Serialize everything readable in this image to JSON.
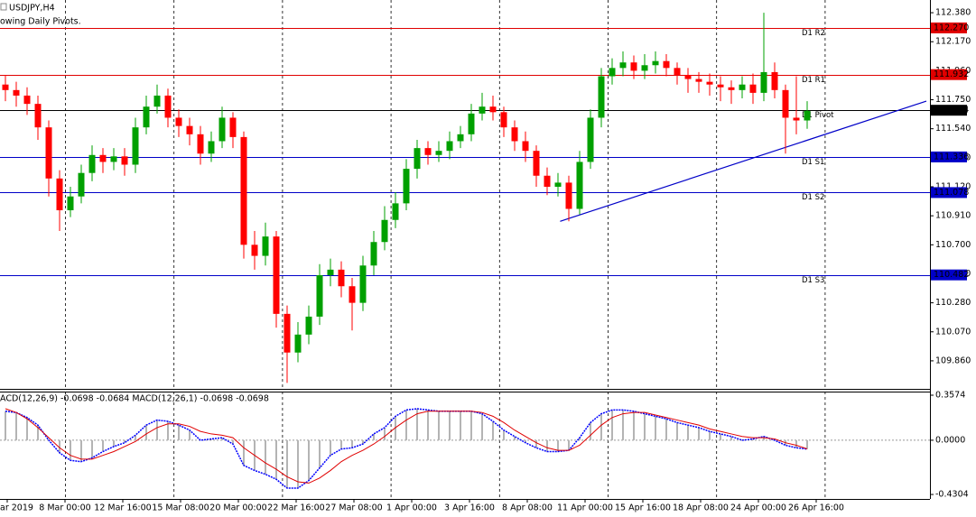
{
  "chart_data": {
    "type": "candlestick",
    "title": "USDJPY,H4",
    "subtitle": "owing Daily Pivots.",
    "up_color": "#00a000",
    "down_color": "#ff0000",
    "ylim": [
      109.657,
      112.472
    ],
    "yticks": [
      {
        "value": 112.38,
        "label": "112.380"
      },
      {
        "value": 112.17,
        "label": "112.170"
      },
      {
        "value": 111.96,
        "label": "111.960"
      },
      {
        "value": 111.75,
        "label": "111.750"
      },
      {
        "value": 111.54,
        "label": "111.540"
      },
      {
        "value": 111.33,
        "label": "111.330"
      },
      {
        "value": 111.12,
        "label": "111.120"
      },
      {
        "value": 110.91,
        "label": "110.910"
      },
      {
        "value": 110.7,
        "label": "110.700"
      },
      {
        "value": 110.49,
        "label": "110.490"
      },
      {
        "value": 110.28,
        "label": "110.280"
      },
      {
        "value": 110.07,
        "label": "110.070"
      },
      {
        "value": 109.86,
        "label": "109.860"
      }
    ],
    "categories": [
      "ar 2019",
      "8 Mar 00:00",
      "12 Mar 16:00",
      "15 Mar 08:00",
      "20 Mar 00:00",
      "22 Mar 16:00",
      "27 Mar 08:00",
      "1 Apr 00:00",
      "3 Apr 16:00",
      "8 Apr 08:00",
      "11 Apr 00:00",
      "15 Apr 16:00",
      "18 Apr 08:00",
      "24 Apr 00:00",
      "26 Apr 16:00"
    ],
    "open": [
      111.86,
      111.82,
      111.78,
      111.72,
      111.55,
      111.18,
      110.95,
      111.05,
      111.22,
      111.35,
      111.3,
      111.34,
      111.28,
      111.55,
      111.7,
      111.78,
      111.62,
      111.56,
      111.5,
      111.36,
      111.45,
      111.62,
      111.48,
      110.7,
      110.62,
      110.76,
      110.2,
      109.92,
      110.05,
      110.18,
      110.48,
      110.52,
      110.4,
      110.28,
      110.55,
      110.72,
      110.88,
      111.0,
      111.25,
      111.4,
      111.35,
      111.38,
      111.45,
      111.5,
      111.65,
      111.7,
      111.66,
      111.55,
      111.45,
      111.38,
      111.2,
      111.12,
      111.15,
      110.96,
      111.3,
      111.62,
      111.92,
      111.98,
      112.02,
      111.96,
      112.0,
      112.03,
      111.98,
      111.93,
      111.9,
      111.88,
      111.86,
      111.84,
      111.82,
      111.86,
      111.8,
      111.95,
      111.82,
      111.62,
      111.6
    ],
    "high": [
      111.93,
      111.88,
      111.84,
      111.78,
      111.6,
      111.24,
      111.12,
      111.28,
      111.42,
      111.4,
      111.4,
      111.4,
      111.62,
      111.78,
      111.86,
      111.83,
      111.68,
      111.62,
      111.56,
      111.52,
      111.7,
      111.66,
      111.52,
      110.8,
      110.86,
      110.8,
      110.26,
      110.14,
      110.26,
      110.56,
      110.6,
      110.58,
      110.46,
      110.62,
      110.8,
      110.98,
      111.08,
      111.32,
      111.46,
      111.45,
      111.45,
      111.52,
      111.56,
      111.72,
      111.8,
      111.78,
      111.7,
      111.6,
      111.52,
      111.42,
      111.26,
      111.22,
      111.2,
      111.38,
      111.68,
      111.98,
      112.05,
      112.1,
      112.07,
      112.08,
      112.1,
      112.08,
      112.02,
      111.98,
      111.95,
      111.94,
      111.92,
      111.89,
      111.92,
      111.94,
      112.38,
      112.02,
      111.86,
      111.92,
      111.74
    ],
    "low": [
      111.74,
      111.7,
      111.64,
      111.46,
      111.05,
      110.8,
      110.9,
      111.0,
      111.16,
      111.22,
      111.24,
      111.2,
      111.22,
      111.5,
      111.65,
      111.55,
      111.48,
      111.42,
      111.28,
      111.3,
      111.4,
      111.4,
      110.6,
      110.52,
      110.55,
      110.1,
      109.7,
      109.85,
      109.98,
      110.12,
      110.4,
      110.32,
      110.08,
      110.22,
      110.48,
      110.66,
      110.82,
      110.95,
      111.18,
      111.28,
      111.3,
      111.32,
      111.4,
      111.45,
      111.6,
      111.6,
      111.48,
      111.38,
      111.3,
      111.12,
      111.06,
      111.05,
      110.87,
      110.92,
      111.25,
      111.55,
      111.86,
      111.92,
      111.9,
      111.9,
      111.94,
      111.92,
      111.86,
      111.8,
      111.8,
      111.78,
      111.74,
      111.72,
      111.76,
      111.72,
      111.74,
      111.76,
      111.36,
      111.5,
      111.54
    ],
    "close": [
      111.82,
      111.78,
      111.72,
      111.55,
      111.18,
      110.95,
      111.05,
      111.22,
      111.35,
      111.3,
      111.34,
      111.28,
      111.55,
      111.7,
      111.78,
      111.62,
      111.56,
      111.5,
      111.36,
      111.45,
      111.62,
      111.48,
      110.7,
      110.62,
      110.76,
      110.2,
      109.92,
      110.05,
      110.18,
      110.48,
      110.52,
      110.4,
      110.28,
      110.55,
      110.72,
      110.88,
      111.0,
      111.25,
      111.4,
      111.35,
      111.38,
      111.45,
      111.5,
      111.65,
      111.7,
      111.66,
      111.55,
      111.45,
      111.38,
      111.2,
      111.12,
      111.15,
      110.96,
      111.3,
      111.62,
      111.92,
      111.98,
      112.02,
      111.96,
      112.0,
      112.03,
      111.98,
      111.93,
      111.9,
      111.88,
      111.86,
      111.84,
      111.82,
      111.86,
      111.8,
      111.95,
      111.82,
      111.62,
      111.6,
      111.67
    ],
    "levels": [
      {
        "name": "D1 R2",
        "value": 112.27,
        "value_label": "112.270",
        "color": "#e00000"
      },
      {
        "name": "D1 R1",
        "value": 111.932,
        "value_label": "111.932",
        "color": "#e00000"
      },
      {
        "name": "D1 Pivot",
        "value": 111.674,
        "value_label": "111.674",
        "color": "#000000"
      },
      {
        "name": "D1 S1",
        "value": 111.336,
        "value_label": "111.336",
        "color": "#0000c8"
      },
      {
        "name": "D1 S2",
        "value": 111.078,
        "value_label": "111.078",
        "color": "#0000c8"
      },
      {
        "name": "D1 S3",
        "value": 110.482,
        "value_label": "110.482",
        "color": "#0000c8"
      }
    ],
    "trendline": {
      "x": [
        51.2,
        85.0
      ],
      "y": [
        110.87,
        111.74
      ],
      "color": "#0000c8"
    },
    "macd": {
      "title": "ACD(12,26,9) -0.0698 -0.0684 MACD(12,26,1) -0.0698 -0.0698",
      "ylim": [
        -0.466,
        0.386
      ],
      "yticks": [
        0.3574,
        {
          "value": 0,
          "label": "0.0000"
        },
        -0.4304
      ],
      "histogram_color": "#b4b4b4",
      "line_color": "#0000ff",
      "signal_color": "#e00000",
      "values": [
        0.23,
        0.22,
        0.18,
        0.12,
        0.0,
        -0.1,
        -0.16,
        -0.17,
        -0.14,
        -0.09,
        -0.05,
        -0.02,
        0.04,
        0.12,
        0.16,
        0.15,
        0.12,
        0.08,
        0.0,
        0.01,
        0.02,
        -0.03,
        -0.2,
        -0.24,
        -0.27,
        -0.31,
        -0.38,
        -0.38,
        -0.32,
        -0.22,
        -0.12,
        -0.07,
        -0.06,
        -0.03,
        0.05,
        0.1,
        0.19,
        0.24,
        0.25,
        0.24,
        0.23,
        0.23,
        0.23,
        0.23,
        0.21,
        0.15,
        0.08,
        0.03,
        -0.02,
        -0.06,
        -0.09,
        -0.09,
        -0.08,
        0.02,
        0.14,
        0.21,
        0.24,
        0.24,
        0.23,
        0.21,
        0.19,
        0.17,
        0.14,
        0.12,
        0.1,
        0.07,
        0.05,
        0.03,
        0.0,
        0.01,
        0.03,
        0.0,
        -0.04,
        -0.06,
        -0.0698
      ],
      "signal": [
        0.25,
        0.22,
        0.17,
        0.1,
        0.02,
        -0.06,
        -0.12,
        -0.15,
        -0.15,
        -0.12,
        -0.09,
        -0.05,
        -0.01,
        0.05,
        0.1,
        0.13,
        0.13,
        0.11,
        0.07,
        0.05,
        0.04,
        0.02,
        -0.06,
        -0.12,
        -0.18,
        -0.23,
        -0.29,
        -0.33,
        -0.34,
        -0.3,
        -0.24,
        -0.17,
        -0.12,
        -0.08,
        -0.03,
        0.03,
        0.1,
        0.16,
        0.21,
        0.23,
        0.23,
        0.23,
        0.23,
        0.23,
        0.22,
        0.19,
        0.14,
        0.08,
        0.03,
        -0.02,
        -0.06,
        -0.08,
        -0.08,
        -0.04,
        0.04,
        0.12,
        0.18,
        0.21,
        0.22,
        0.22,
        0.2,
        0.18,
        0.16,
        0.14,
        0.12,
        0.09,
        0.07,
        0.05,
        0.03,
        0.02,
        0.02,
        0.01,
        -0.02,
        -0.04,
        -0.0684
      ]
    }
  }
}
